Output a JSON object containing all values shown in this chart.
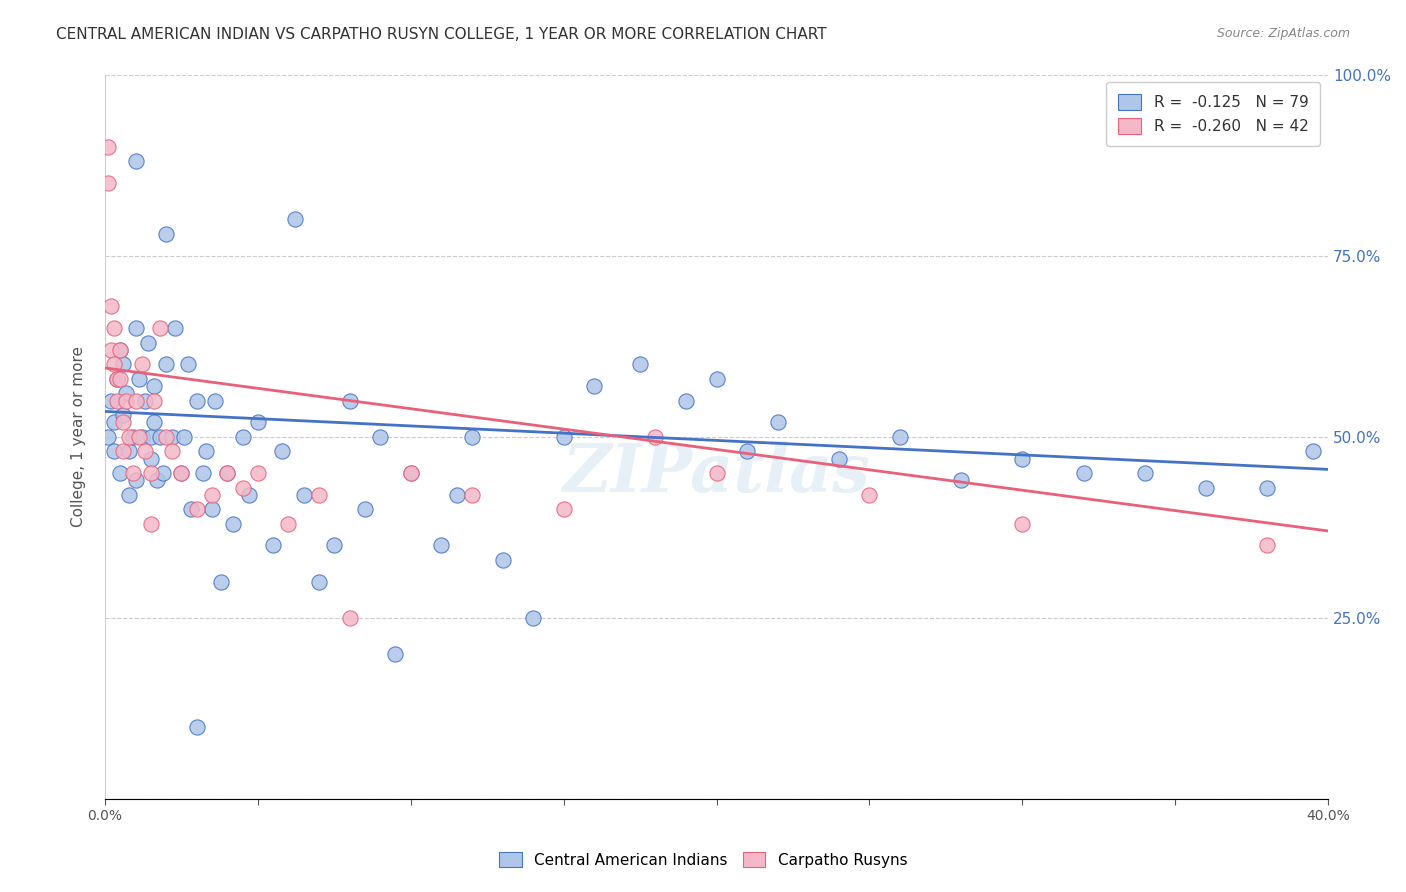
{
  "title": "CENTRAL AMERICAN INDIAN VS CARPATHO RUSYN COLLEGE, 1 YEAR OR MORE CORRELATION CHART",
  "source": "Source: ZipAtlas.com",
  "xlabel": "",
  "ylabel": "College, 1 year or more",
  "xlim": [
    0.0,
    0.4
  ],
  "ylim": [
    0.0,
    1.0
  ],
  "xticks": [
    0.0,
    0.05,
    0.1,
    0.15,
    0.2,
    0.25,
    0.3,
    0.35,
    0.4
  ],
  "xticklabels": [
    "0.0%",
    "",
    "",
    "",
    "",
    "",
    "",
    "",
    "40.0%"
  ],
  "yticks": [
    0.0,
    0.25,
    0.5,
    0.75,
    1.0
  ],
  "yticklabels": [
    "",
    "25.0%",
    "50.0%",
    "75.0%",
    "100.0%"
  ],
  "blue_color": "#aec6e8",
  "pink_color": "#f4b8c8",
  "blue_line_color": "#4472c4",
  "pink_line_color": "#e8607a",
  "blue_r": -0.125,
  "blue_n": 79,
  "pink_r": -0.26,
  "pink_n": 42,
  "legend_label_blue": "R =  -0.125   N = 79",
  "legend_label_pink": "R =  -0.260   N = 42",
  "blue_scatter_x": [
    0.001,
    0.002,
    0.003,
    0.003,
    0.004,
    0.005,
    0.005,
    0.006,
    0.006,
    0.007,
    0.008,
    0.008,
    0.009,
    0.01,
    0.01,
    0.011,
    0.012,
    0.013,
    0.014,
    0.015,
    0.015,
    0.016,
    0.016,
    0.017,
    0.018,
    0.019,
    0.02,
    0.022,
    0.023,
    0.025,
    0.026,
    0.027,
    0.028,
    0.03,
    0.032,
    0.033,
    0.035,
    0.036,
    0.038,
    0.04,
    0.042,
    0.045,
    0.047,
    0.05,
    0.055,
    0.058,
    0.062,
    0.065,
    0.07,
    0.075,
    0.08,
    0.085,
    0.09,
    0.095,
    0.1,
    0.11,
    0.115,
    0.12,
    0.13,
    0.14,
    0.15,
    0.16,
    0.175,
    0.19,
    0.2,
    0.21,
    0.22,
    0.24,
    0.26,
    0.28,
    0.3,
    0.32,
    0.34,
    0.36,
    0.38,
    0.395,
    0.01,
    0.02,
    0.03
  ],
  "blue_scatter_y": [
    0.5,
    0.55,
    0.52,
    0.48,
    0.58,
    0.62,
    0.45,
    0.53,
    0.6,
    0.56,
    0.48,
    0.42,
    0.5,
    0.65,
    0.44,
    0.58,
    0.5,
    0.55,
    0.63,
    0.5,
    0.47,
    0.52,
    0.57,
    0.44,
    0.5,
    0.45,
    0.6,
    0.5,
    0.65,
    0.45,
    0.5,
    0.6,
    0.4,
    0.55,
    0.45,
    0.48,
    0.4,
    0.55,
    0.3,
    0.45,
    0.38,
    0.5,
    0.42,
    0.52,
    0.35,
    0.48,
    0.8,
    0.42,
    0.3,
    0.35,
    0.55,
    0.4,
    0.5,
    0.2,
    0.45,
    0.35,
    0.42,
    0.5,
    0.33,
    0.25,
    0.5,
    0.57,
    0.6,
    0.55,
    0.58,
    0.48,
    0.52,
    0.47,
    0.5,
    0.44,
    0.47,
    0.45,
    0.45,
    0.43,
    0.43,
    0.48,
    0.88,
    0.78,
    0.1
  ],
  "pink_scatter_x": [
    0.001,
    0.001,
    0.002,
    0.002,
    0.003,
    0.003,
    0.004,
    0.004,
    0.005,
    0.005,
    0.006,
    0.006,
    0.007,
    0.008,
    0.009,
    0.01,
    0.011,
    0.012,
    0.013,
    0.015,
    0.015,
    0.016,
    0.018,
    0.02,
    0.022,
    0.025,
    0.03,
    0.035,
    0.04,
    0.045,
    0.05,
    0.06,
    0.07,
    0.08,
    0.1,
    0.12,
    0.15,
    0.18,
    0.2,
    0.25,
    0.3,
    0.38
  ],
  "pink_scatter_y": [
    0.9,
    0.85,
    0.68,
    0.62,
    0.65,
    0.6,
    0.58,
    0.55,
    0.62,
    0.58,
    0.52,
    0.48,
    0.55,
    0.5,
    0.45,
    0.55,
    0.5,
    0.6,
    0.48,
    0.45,
    0.38,
    0.55,
    0.65,
    0.5,
    0.48,
    0.45,
    0.4,
    0.42,
    0.45,
    0.43,
    0.45,
    0.38,
    0.42,
    0.25,
    0.45,
    0.42,
    0.4,
    0.5,
    0.45,
    0.42,
    0.38,
    0.35
  ],
  "blue_trend_x": [
    0.0,
    0.4
  ],
  "blue_trend_y": [
    0.535,
    0.455
  ],
  "pink_trend_x": [
    0.0,
    0.4
  ],
  "pink_trend_y": [
    0.595,
    0.37
  ],
  "background_color": "#ffffff",
  "title_fontsize": 11,
  "axis_label_color": "#555555",
  "right_axis_color": "#4472c4",
  "watermark_text": "ZIPatlas",
  "watermark_color": "#d0e0f0",
  "grid_color": "#cccccc",
  "grid_linestyle": "--"
}
